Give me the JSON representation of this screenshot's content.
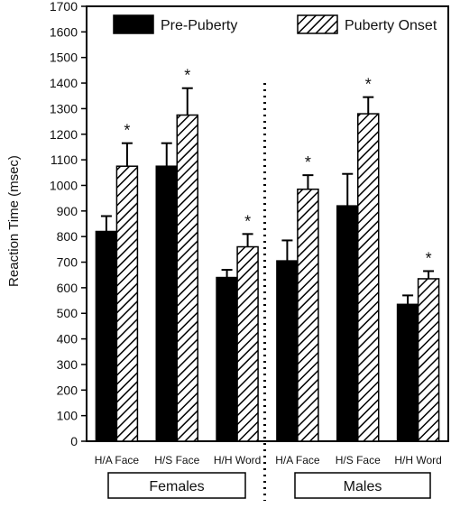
{
  "chart_data": {
    "type": "bar",
    "ylabel": "Reaction Time (msec)",
    "ylim": [
      0,
      1700
    ],
    "ytick_step": 100,
    "grid": false,
    "legend_position": "top",
    "categories": [
      "H/A Face",
      "H/S Face",
      "H/H Word",
      "H/A Face",
      "H/S Face",
      "H/H Word"
    ],
    "groups": [
      {
        "label": "Females",
        "category_indices": [
          0,
          1,
          2
        ]
      },
      {
        "label": "Males",
        "category_indices": [
          3,
          4,
          5
        ]
      }
    ],
    "series": [
      {
        "name": "Pre-Puberty",
        "fill": "solid",
        "values": [
          820,
          1075,
          640,
          705,
          920,
          535
        ],
        "errors": [
          60,
          90,
          30,
          80,
          125,
          35
        ]
      },
      {
        "name": "Puberty Onset",
        "fill": "hatched",
        "values": [
          1075,
          1275,
          760,
          985,
          1280,
          635
        ],
        "errors": [
          90,
          105,
          50,
          55,
          65,
          30
        ]
      }
    ],
    "annotations": [
      {
        "text": "*",
        "series": 1,
        "category": 0
      },
      {
        "text": "*",
        "series": 1,
        "category": 1
      },
      {
        "text": "*",
        "series": 1,
        "category": 2
      },
      {
        "text": "*",
        "series": 1,
        "category": 3
      },
      {
        "text": "*",
        "series": 1,
        "category": 4
      },
      {
        "text": "*",
        "series": 1,
        "category": 5
      }
    ],
    "colors": {
      "solid": "#000000",
      "hatch": "#000000",
      "background": "#ffffff"
    }
  }
}
